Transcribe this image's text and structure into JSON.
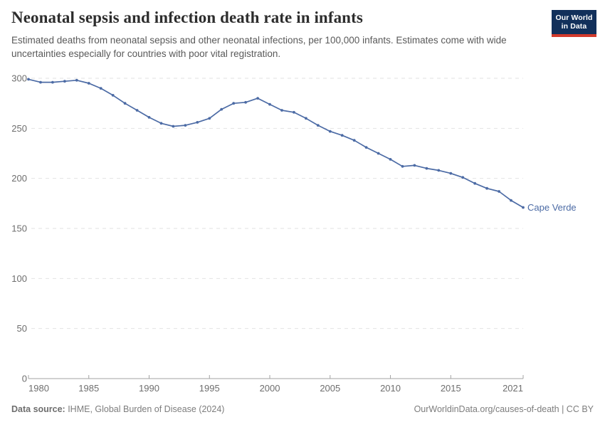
{
  "header": {
    "title": "Neonatal sepsis and infection death rate in infants",
    "subtitle": "Estimated deaths from neonatal sepsis and other neonatal infections, per 100,000 infants. Estimates come with wide uncertainties especially for countries with poor vital registration.",
    "logo": {
      "line1": "Our World",
      "line2": "in Data"
    }
  },
  "chart_data": {
    "type": "line",
    "title": "Neonatal sepsis and infection death rate in infants",
    "xlabel": "",
    "ylabel": "",
    "xlim": [
      1980,
      2021
    ],
    "ylim": [
      0,
      300
    ],
    "yticks": [
      0,
      50,
      100,
      150,
      200,
      250,
      300
    ],
    "xticks": [
      1980,
      1985,
      1990,
      1995,
      2000,
      2005,
      2010,
      2015,
      2021
    ],
    "grid": "horizontal-dashed",
    "legend_position": "end-of-line-label",
    "series": [
      {
        "name": "Cape Verde",
        "x": [
          1980,
          1981,
          1982,
          1983,
          1984,
          1985,
          1986,
          1987,
          1988,
          1989,
          1990,
          1991,
          1992,
          1993,
          1994,
          1995,
          1996,
          1997,
          1998,
          1999,
          2000,
          2001,
          2002,
          2003,
          2004,
          2005,
          2006,
          2007,
          2008,
          2009,
          2010,
          2011,
          2012,
          2013,
          2014,
          2015,
          2016,
          2017,
          2018,
          2019,
          2020,
          2021
        ],
        "values": [
          299,
          296,
          296,
          297,
          298,
          295,
          290,
          283,
          275,
          268,
          261,
          255,
          252,
          253,
          256,
          260,
          269,
          275,
          276,
          280,
          274,
          268,
          266,
          260,
          253,
          247,
          243,
          238,
          231,
          225,
          219,
          212,
          213,
          210,
          208,
          205,
          201,
          195,
          190,
          187,
          178,
          171
        ]
      }
    ]
  },
  "footer": {
    "datasource_label": "Data source:",
    "datasource_value": " IHME, Global Burden of Disease (2024)",
    "credit": "OurWorldinData.org/causes-of-death | CC BY"
  },
  "colors": {
    "line": "#4c6ba5",
    "entity_label": "#4c6ba5",
    "gridline": "#e2e2e2",
    "axis": "#a3a3a3",
    "tick_label": "#6e6e6e",
    "logo_bg": "#12305b",
    "logo_red": "#d23a2c"
  }
}
